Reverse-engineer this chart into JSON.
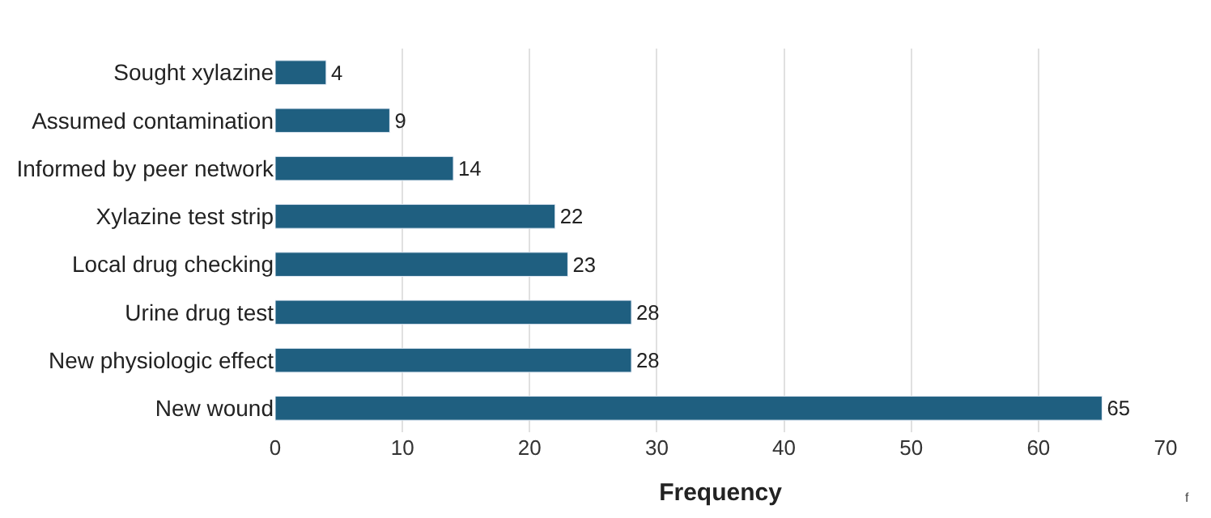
{
  "chart_data": {
    "type": "bar",
    "orientation": "horizontal",
    "xlabel": "Frequency",
    "categories": [
      "Sought xylazine",
      "Assumed contamination",
      "Informed by peer network",
      "Xylazine test strip",
      "Local drug checking",
      "Urine drug test",
      "New physiologic effect",
      "New wound"
    ],
    "values": [
      4,
      9,
      14,
      22,
      23,
      28,
      28,
      65
    ],
    "color": "#1f5f80",
    "xlim": [
      0,
      70
    ],
    "xticks": [
      0,
      10,
      20,
      30,
      40,
      50,
      60,
      70
    ],
    "grid": "x",
    "data_labels": true,
    "annotations": [
      "f"
    ]
  }
}
